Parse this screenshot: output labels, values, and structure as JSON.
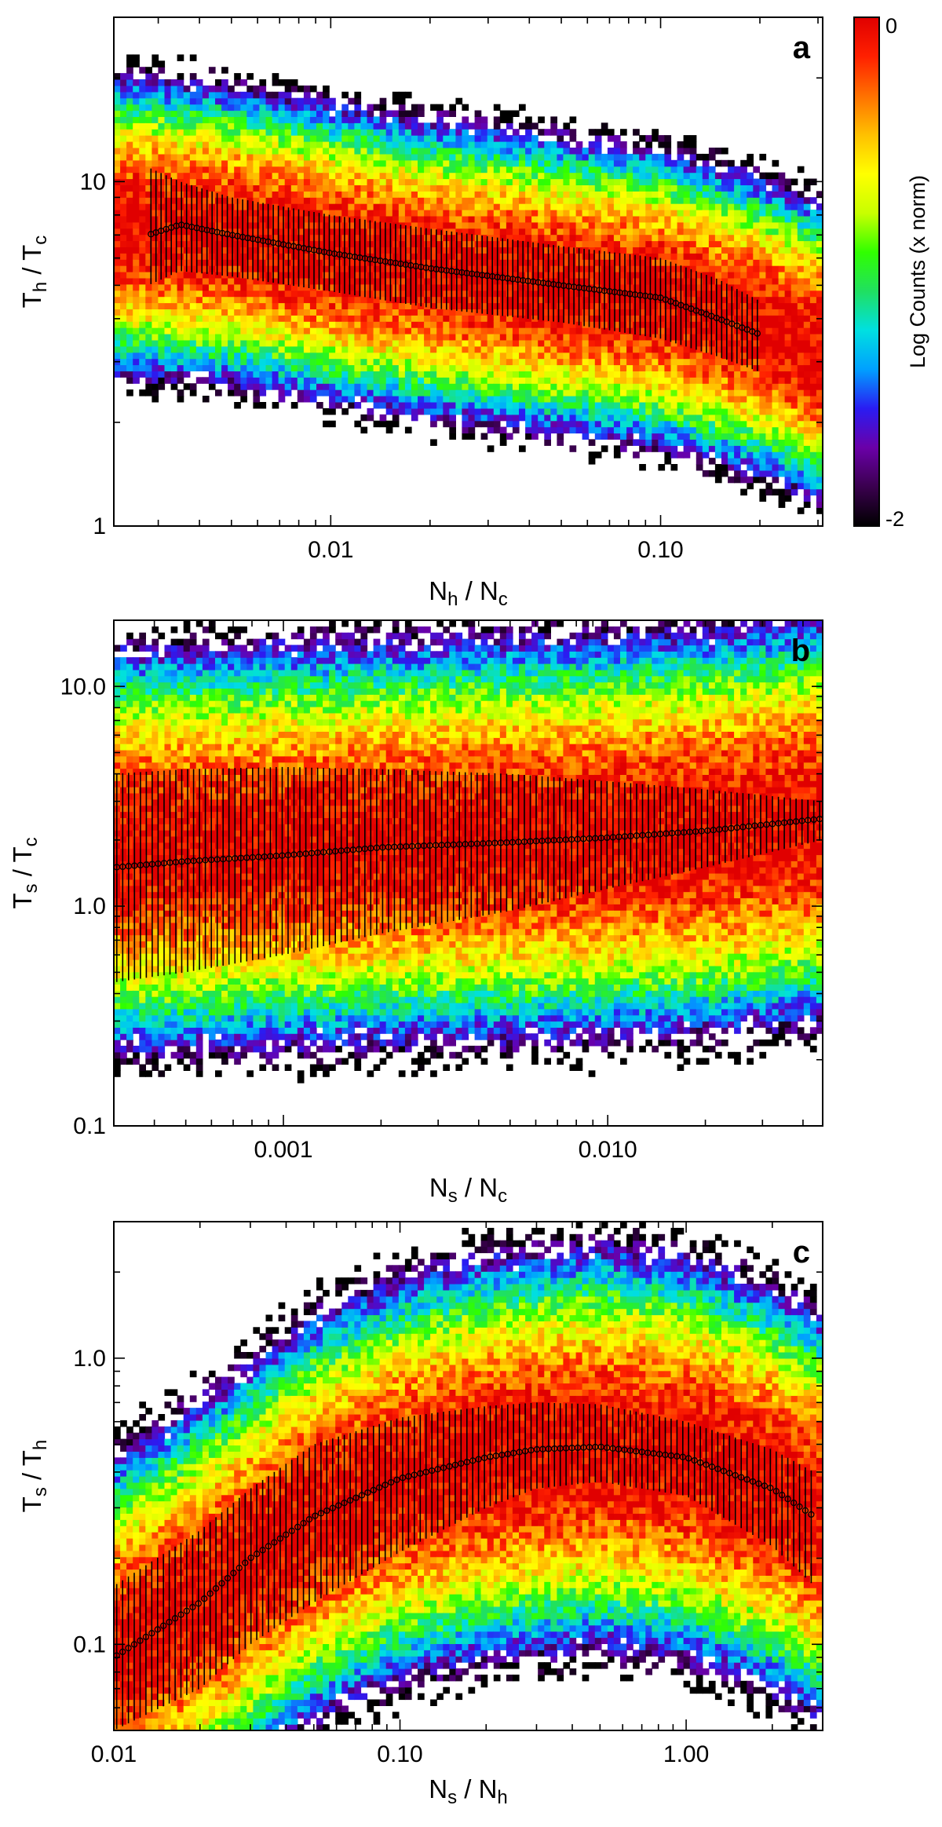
{
  "colors": {
    "colormap": [
      "#000000",
      "#3a004e",
      "#6a00a8",
      "#2a1cf2",
      "#00a0ff",
      "#00e0e0",
      "#20e060",
      "#30ff00",
      "#c8ff00",
      "#ffff00",
      "#ffc000",
      "#ff7000",
      "#ff2000",
      "#e00000"
    ],
    "median_marker": "#000000"
  },
  "colorbar": {
    "label": "Log Counts (x norm)",
    "max_label": "0",
    "min_label": "-2",
    "range": [
      -2,
      0
    ]
  },
  "chart_data": [
    {
      "type": "heatmap",
      "panel_label": "a",
      "xlabel_main": "N",
      "xlabel_sub": "h",
      "xlabel_sep": " / ",
      "xlabel_main2": "N",
      "xlabel_sub2": "c",
      "ylabel_main": "T",
      "ylabel_sub": "h",
      "ylabel_sep": " / ",
      "ylabel_main2": "T",
      "ylabel_sub2": "c",
      "xscale": "log",
      "yscale": "log",
      "xlim": [
        0.0022,
        0.31
      ],
      "ylim": [
        1,
        30
      ],
      "xticks": [
        {
          "value": 0.01,
          "label": "0.01"
        },
        {
          "value": 0.1,
          "label": "0.10"
        }
      ],
      "yticks": [
        {
          "value": 1,
          "label": "1"
        },
        {
          "value": 10,
          "label": "10"
        }
      ],
      "median_curve": {
        "x": [
          0.0028,
          0.0035,
          0.005,
          0.01,
          0.02,
          0.05,
          0.1,
          0.15,
          0.2
        ],
        "y": [
          7.0,
          7.5,
          7.0,
          6.2,
          5.6,
          5.0,
          4.6,
          4.0,
          3.6
        ],
        "lower": [
          5.0,
          5.5,
          5.3,
          4.8,
          4.3,
          3.9,
          3.5,
          3.1,
          2.8
        ],
        "upper": [
          11.0,
          10.0,
          9.0,
          8.0,
          7.3,
          6.5,
          6.0,
          5.2,
          4.5
        ]
      },
      "density_ridge": {
        "x": [
          0.0022,
          0.005,
          0.01,
          0.02,
          0.05,
          0.1,
          0.2,
          0.31
        ],
        "y": [
          7.5,
          7.0,
          6.2,
          5.6,
          5.0,
          4.6,
          3.8,
          3.2
        ],
        "log_sigma": 0.16
      }
    },
    {
      "type": "heatmap",
      "panel_label": "b",
      "xlabel_main": "N",
      "xlabel_sub": "s",
      "xlabel_sep": " / ",
      "xlabel_main2": "N",
      "xlabel_sub2": "c",
      "ylabel_main": "T",
      "ylabel_sub": "s",
      "ylabel_sep": " / ",
      "ylabel_main2": "T",
      "ylabel_sub2": "c",
      "xscale": "log",
      "yscale": "log",
      "xlim": [
        0.0003,
        0.046
      ],
      "ylim": [
        0.1,
        20
      ],
      "xticks": [
        {
          "value": 0.001,
          "label": "0.001"
        },
        {
          "value": 0.01,
          "label": "0.010"
        }
      ],
      "yticks": [
        {
          "value": 0.1,
          "label": "0.1"
        },
        {
          "value": 1,
          "label": "1.0"
        },
        {
          "value": 10,
          "label": "10.0"
        }
      ],
      "median_curve": {
        "x": [
          0.0003,
          0.0005,
          0.001,
          0.002,
          0.005,
          0.01,
          0.02,
          0.046
        ],
        "y": [
          1.5,
          1.6,
          1.7,
          1.85,
          1.95,
          2.05,
          2.2,
          2.5
        ],
        "lower": [
          0.45,
          0.5,
          0.6,
          0.75,
          0.95,
          1.2,
          1.5,
          2.0
        ],
        "upper": [
          4.0,
          4.2,
          4.3,
          4.2,
          4.0,
          3.7,
          3.4,
          3.0
        ]
      },
      "density_ridge": {
        "x": [
          0.0003,
          0.001,
          0.003,
          0.01,
          0.02,
          0.046
        ],
        "y": [
          1.8,
          1.9,
          2.0,
          2.1,
          2.2,
          2.5
        ],
        "log_sigma": 0.34
      }
    },
    {
      "type": "heatmap",
      "panel_label": "c",
      "xlabel_main": "N",
      "xlabel_sub": "s",
      "xlabel_sep": " / ",
      "xlabel_main2": "N",
      "xlabel_sub2": "h",
      "ylabel_main": "T",
      "ylabel_sub": "s",
      "ylabel_sep": " / ",
      "ylabel_main2": "T",
      "ylabel_sub2": "h",
      "xscale": "log",
      "yscale": "log",
      "xlim": [
        0.01,
        3.0
      ],
      "ylim": [
        0.05,
        3.0
      ],
      "xticks": [
        {
          "value": 0.01,
          "label": "0.01"
        },
        {
          "value": 0.1,
          "label": "0.10"
        },
        {
          "value": 1,
          "label": "1.00"
        }
      ],
      "yticks": [
        {
          "value": 0.1,
          "label": "0.1"
        },
        {
          "value": 1,
          "label": "1.0"
        }
      ],
      "median_curve": {
        "x": [
          0.01,
          0.02,
          0.03,
          0.05,
          0.1,
          0.2,
          0.3,
          0.5,
          1.0,
          2.0,
          2.8
        ],
        "y": [
          0.09,
          0.14,
          0.2,
          0.28,
          0.38,
          0.45,
          0.48,
          0.49,
          0.45,
          0.35,
          0.28
        ],
        "lower": [
          0.05,
          0.07,
          0.1,
          0.14,
          0.21,
          0.3,
          0.35,
          0.37,
          0.33,
          0.22,
          0.16
        ],
        "upper": [
          0.16,
          0.25,
          0.35,
          0.5,
          0.62,
          0.68,
          0.7,
          0.69,
          0.6,
          0.48,
          0.4
        ]
      },
      "density_ridge": {
        "x": [
          0.01,
          0.02,
          0.05,
          0.1,
          0.2,
          0.5,
          1.0,
          2.0,
          3.0
        ],
        "y": [
          0.09,
          0.14,
          0.28,
          0.38,
          0.45,
          0.49,
          0.45,
          0.35,
          0.28
        ],
        "log_sigma": 0.26
      }
    }
  ]
}
